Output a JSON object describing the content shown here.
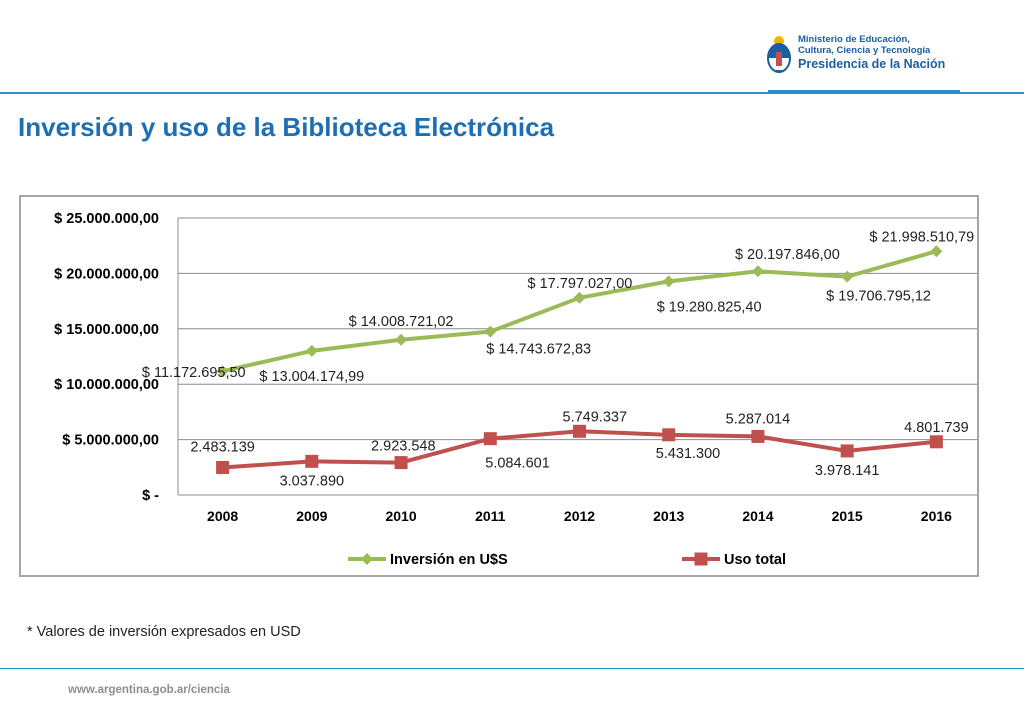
{
  "header": {
    "logo_lines": [
      "Ministerio de Educación,",
      "Cultura, Ciencia y Tecnología",
      "Presidencia de la Nación"
    ]
  },
  "slide_title": "Inversión y uso de la Biblioteca Electrónica",
  "note": "* Valores de inversión expresados en USD",
  "footer_url": "www.argentina.gob.ar/ciencia",
  "colors": {
    "accent": "#2f8fc9",
    "title": "#1e6fb2",
    "investment": "#9bbb59",
    "usage": "#c0504d"
  },
  "chart_data": {
    "type": "line",
    "categories": [
      "2008",
      "2009",
      "2010",
      "2011",
      "2012",
      "2013",
      "2014",
      "2015",
      "2016"
    ],
    "ylim": [
      0,
      25000000
    ],
    "y_ticks": [
      {
        "value": 0,
        "label": "$ -"
      },
      {
        "value": 5000000,
        "label": "$ 5.000.000,00"
      },
      {
        "value": 10000000,
        "label": "$ 10.000.000,00"
      },
      {
        "value": 15000000,
        "label": "$ 15.000.000,00"
      },
      {
        "value": 20000000,
        "label": "$ 20.000.000,00"
      },
      {
        "value": 25000000,
        "label": "$ 25.000.000,00"
      }
    ],
    "grid": true,
    "legend_position": "bottom",
    "series": [
      {
        "name": "Inversión en U$S",
        "marker": "diamond",
        "values": [
          11172695.5,
          13004174.99,
          14008721.02,
          14743672.83,
          17797027.0,
          19280825.4,
          20197846.0,
          19706795.12,
          21998510.79
        ],
        "labels": [
          "$ 11.172.695,50",
          "$ 13.004.174,99",
          "$ 14.008.721,02",
          "$ 14.743.672,83",
          "$ 17.797.027,00",
          "$ 19.280.825,40",
          "$ 20.197.846,00",
          "$ 19.706.795,12",
          "$ 21.998.510,79"
        ]
      },
      {
        "name": "Uso total",
        "marker": "square",
        "values": [
          2483139,
          3037890,
          2923548,
          5084601,
          5749337,
          5431300,
          5287014,
          3978141,
          4801739
        ],
        "labels": [
          "2.483.139",
          "3.037.890",
          "2.923.548",
          "5.084.601",
          "5.749.337",
          "5.431.300",
          "5.287.014",
          "3.978.141",
          "4.801.739"
        ]
      }
    ]
  }
}
